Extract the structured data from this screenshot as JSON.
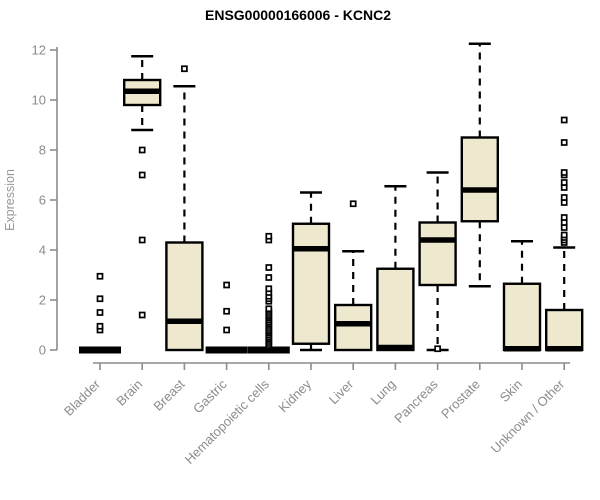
{
  "chart_data": {
    "type": "boxplot",
    "title": "ENSG00000166006 - KCNC2",
    "ylabel": "Expression",
    "xlabel": "",
    "ylim": [
      0,
      12.3
    ],
    "yticks": [
      0,
      2,
      4,
      6,
      8,
      10,
      12
    ],
    "grid": false,
    "legend": "none",
    "categories": [
      "Bladder",
      "Brain",
      "Breast",
      "Gastric",
      "Hematopoietic cells",
      "Kidney",
      "Liver",
      "Lung",
      "Pancreas",
      "Prostate",
      "Skin",
      "Unknown / Other"
    ],
    "boxes": [
      {
        "category": "Bladder",
        "low": 0,
        "q1": 0,
        "median": 0,
        "q3": 0,
        "high": 0,
        "outliers": [
          0.8,
          0.95,
          1.5,
          2.05,
          2.95
        ]
      },
      {
        "category": "Brain",
        "low": 8.8,
        "q1": 9.8,
        "median": 10.35,
        "q3": 10.8,
        "high": 11.75,
        "outliers": [
          8.0,
          7.0,
          4.4,
          1.4
        ]
      },
      {
        "category": "Breast",
        "low": 0,
        "q1": 0,
        "median": 1.15,
        "q3": 4.3,
        "high": 10.55,
        "outliers": [
          11.25
        ]
      },
      {
        "category": "Gastric",
        "low": 0,
        "q1": 0,
        "median": 0,
        "q3": 0,
        "high": 0,
        "outliers": [
          0.8,
          1.55,
          2.6
        ]
      },
      {
        "category": "Hematopoietic cells",
        "low": 0,
        "q1": 0,
        "median": 0,
        "q3": 0,
        "high": 0,
        "outliers": [
          0.15,
          0.22,
          0.3,
          0.38,
          0.45,
          0.52,
          0.6,
          0.68,
          0.75,
          0.82,
          0.9,
          0.98,
          1.05,
          1.12,
          1.2,
          1.28,
          1.35,
          1.42,
          1.5,
          1.58,
          1.65,
          1.95,
          2.05,
          2.15,
          2.3,
          2.45,
          2.9,
          3.3,
          4.4,
          4.55
        ]
      },
      {
        "category": "Kidney",
        "low": 0,
        "q1": 0.25,
        "median": 4.05,
        "q3": 5.05,
        "high": 6.3,
        "outliers": []
      },
      {
        "category": "Liver",
        "low": 0,
        "q1": 0,
        "median": 1.05,
        "q3": 1.8,
        "high": 3.95,
        "outliers": [
          5.85
        ]
      },
      {
        "category": "Lung",
        "low": 0,
        "q1": 0,
        "median": 0.1,
        "q3": 3.25,
        "high": 6.55,
        "outliers": []
      },
      {
        "category": "Pancreas",
        "low": 0,
        "q1": 2.6,
        "median": 4.4,
        "q3": 5.1,
        "high": 7.1,
        "outliers": [
          0.05
        ]
      },
      {
        "category": "Prostate",
        "low": 2.55,
        "q1": 5.15,
        "median": 6.4,
        "q3": 8.5,
        "high": 12.25,
        "outliers": []
      },
      {
        "category": "Skin",
        "low": 0,
        "q1": 0,
        "median": 0.05,
        "q3": 2.65,
        "high": 4.35,
        "outliers": []
      },
      {
        "category": "Unknown / Other",
        "low": 0,
        "q1": 0,
        "median": 0.05,
        "q3": 1.6,
        "high": 4.1,
        "outliers": [
          4.3,
          4.4,
          4.5,
          4.6,
          4.9,
          5.1,
          5.3,
          5.9,
          6.1,
          6.5,
          6.7,
          7.0,
          7.1,
          8.3,
          9.2
        ]
      }
    ],
    "colors": {
      "box_fill": "#EDE8CE",
      "box_border": "#000000",
      "median": "#000000",
      "whisker": "#000000",
      "outlier_stroke": "#000000",
      "outlier_fill": "#ffffff",
      "axis": "#8c8c8c",
      "tick_label": "#8c8c8c",
      "title": "#000000",
      "background": "#ffffff"
    }
  }
}
